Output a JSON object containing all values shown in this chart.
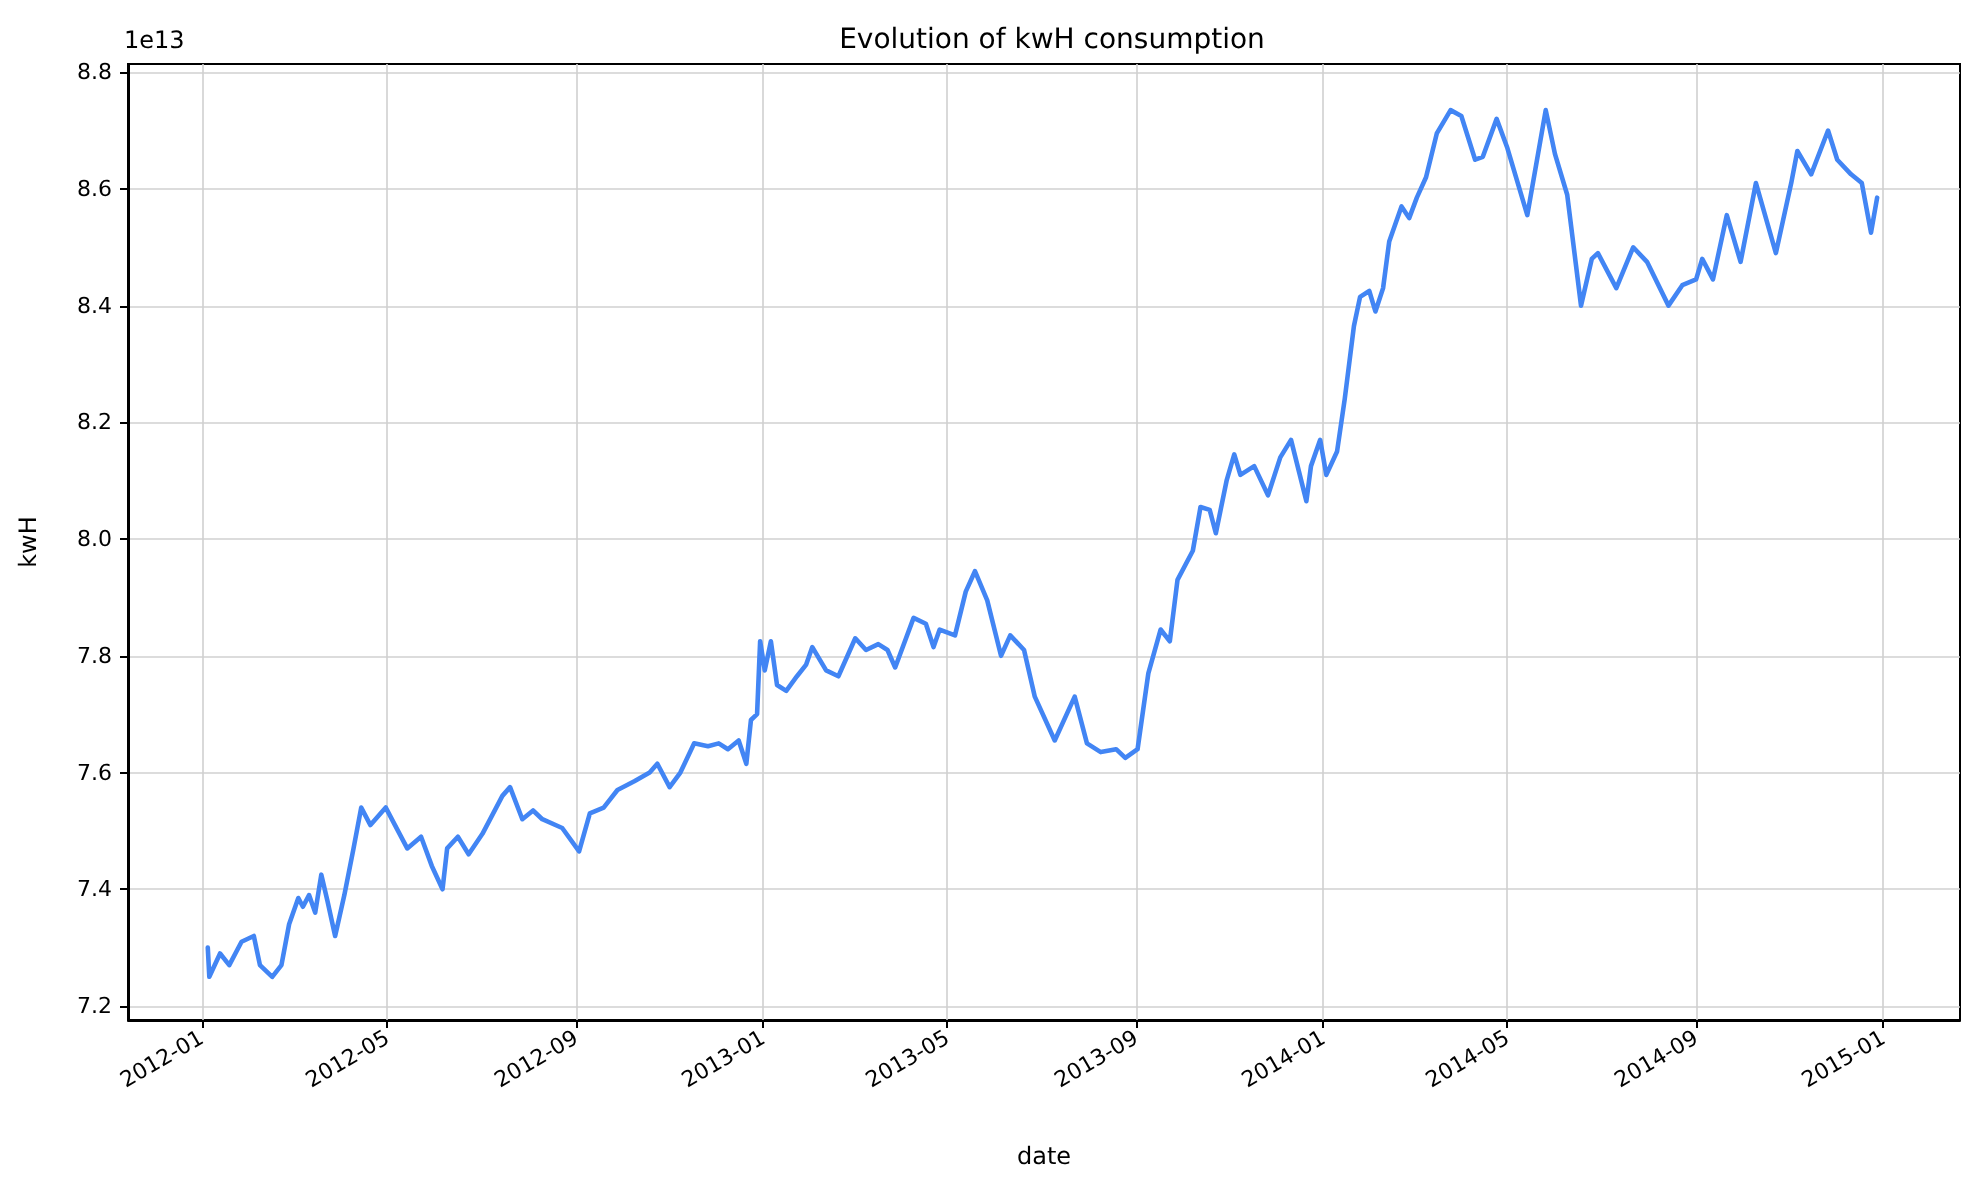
{
  "chart_data": {
    "type": "line",
    "title": "Evolution of kwH consumption",
    "xlabel": "date",
    "ylabel": "kwH",
    "annotations": [
      "1e13"
    ],
    "x": [
      "2012-01-05",
      "2012-01-06",
      "2012-01-13",
      "2012-01-19",
      "2012-01-27",
      "2012-02-04",
      "2012-02-08",
      "2012-02-16",
      "2012-02-22",
      "2012-02-27",
      "2012-03-04",
      "2012-03-07",
      "2012-03-11",
      "2012-03-15",
      "2012-03-19",
      "2012-03-23",
      "2012-03-28",
      "2012-04-03",
      "2012-04-09",
      "2012-04-14",
      "2012-04-20",
      "2012-04-30",
      "2012-05-06",
      "2012-05-14",
      "2012-05-23",
      "2012-05-30",
      "2012-06-06",
      "2012-06-09",
      "2012-06-16",
      "2012-06-23",
      "2012-07-02",
      "2012-07-15",
      "2012-07-20",
      "2012-07-28",
      "2012-08-04",
      "2012-08-10",
      "2012-08-23",
      "2012-09-03",
      "2012-09-10",
      "2012-09-19",
      "2012-09-28",
      "2012-10-09",
      "2012-10-19",
      "2012-10-24",
      "2012-11-01",
      "2012-11-08",
      "2012-11-17",
      "2012-11-26",
      "2012-12-03",
      "2012-12-09",
      "2012-12-16",
      "2012-12-21",
      "2012-12-24",
      "2012-12-28",
      "2012-12-30",
      "2013-01-02",
      "2013-01-06",
      "2013-01-10",
      "2013-01-16",
      "2013-01-23",
      "2013-01-29",
      "2013-02-02",
      "2013-02-11",
      "2013-02-19",
      "2013-03-02",
      "2013-03-09",
      "2013-03-17",
      "2013-03-23",
      "2013-03-28",
      "2013-04-09",
      "2013-04-17",
      "2013-04-22",
      "2013-04-26",
      "2013-05-06",
      "2013-05-13",
      "2013-05-19",
      "2013-05-27",
      "2013-06-05",
      "2013-06-11",
      "2013-06-20",
      "2013-06-27",
      "2013-07-10",
      "2013-07-23",
      "2013-07-31",
      "2013-08-09",
      "2013-08-19",
      "2013-08-25",
      "2013-09-02",
      "2013-09-09",
      "2013-09-17",
      "2013-09-23",
      "2013-09-28",
      "2013-10-08",
      "2013-10-13",
      "2013-10-19",
      "2013-10-23",
      "2013-10-30",
      "2013-11-04",
      "2013-11-08",
      "2013-11-17",
      "2013-11-26",
      "2013-12-04",
      "2013-12-11",
      "2013-12-21",
      "2013-12-24",
      "2013-12-30",
      "2014-01-03",
      "2014-01-10",
      "2014-01-15",
      "2014-01-21",
      "2014-01-25",
      "2014-01-31",
      "2014-02-04",
      "2014-02-09",
      "2014-02-13",
      "2014-02-21",
      "2014-02-26",
      "2014-03-03",
      "2014-03-09",
      "2014-03-16",
      "2014-03-25",
      "2014-04-01",
      "2014-04-10",
      "2014-04-15",
      "2014-04-24",
      "2014-05-01",
      "2014-05-14",
      "2014-05-26",
      "2014-06-01",
      "2014-06-09",
      "2014-06-18",
      "2014-06-25",
      "2014-06-29",
      "2014-07-11",
      "2014-07-22",
      "2014-07-31",
      "2014-08-14",
      "2014-08-23",
      "2014-09-01",
      "2014-09-05",
      "2014-09-12",
      "2014-09-21",
      "2014-09-30",
      "2014-10-10",
      "2014-10-23",
      "2014-11-02",
      "2014-11-06",
      "2014-11-15",
      "2014-11-26",
      "2014-12-02",
      "2014-12-11",
      "2014-12-18",
      "2014-12-24",
      "2014-12-28"
    ],
    "series": [
      {
        "color": "#4285f4",
        "values": [
          7.3,
          7.25,
          7.29,
          7.27,
          7.31,
          7.32,
          7.27,
          7.25,
          7.27,
          7.34,
          7.385,
          7.37,
          7.39,
          7.36,
          7.425,
          7.38,
          7.32,
          7.39,
          7.47,
          7.54,
          7.51,
          7.54,
          7.51,
          7.47,
          7.49,
          7.44,
          7.4,
          7.47,
          7.49,
          7.46,
          7.495,
          7.56,
          7.575,
          7.52,
          7.535,
          7.52,
          7.505,
          7.465,
          7.53,
          7.54,
          7.57,
          7.585,
          7.6,
          7.615,
          7.575,
          7.6,
          7.65,
          7.645,
          7.65,
          7.64,
          7.655,
          7.615,
          7.69,
          7.7,
          7.825,
          7.775,
          7.825,
          7.75,
          7.74,
          7.765,
          7.785,
          7.815,
          7.775,
          7.765,
          7.83,
          7.81,
          7.82,
          7.81,
          7.78,
          7.865,
          7.855,
          7.815,
          7.845,
          7.835,
          7.91,
          7.945,
          7.895,
          7.8,
          7.835,
          7.81,
          7.73,
          7.655,
          7.73,
          7.65,
          7.635,
          7.64,
          7.625,
          7.64,
          7.77,
          7.845,
          7.825,
          7.93,
          7.98,
          8.055,
          8.05,
          8.01,
          8.1,
          8.145,
          8.11,
          8.125,
          8.075,
          8.14,
          8.17,
          8.065,
          8.125,
          8.17,
          8.11,
          8.15,
          8.24,
          8.365,
          8.415,
          8.425,
          8.39,
          8.43,
          8.51,
          8.57,
          8.55,
          8.585,
          8.62,
          8.695,
          8.735,
          8.725,
          8.65,
          8.655,
          8.72,
          8.67,
          8.555,
          8.735,
          8.66,
          8.59,
          8.4,
          8.48,
          8.49,
          8.43,
          8.5,
          8.475,
          8.4,
          8.435,
          8.445,
          8.48,
          8.445,
          8.555,
          8.475,
          8.61,
          8.49,
          8.61,
          8.665,
          8.625,
          8.7,
          8.65,
          8.625,
          8.61,
          8.525,
          8.585
        ]
      }
    ],
    "xlim": [
      "2011-11-14",
      "2015-02-20"
    ],
    "xticks": [
      "2012-01",
      "2012-05",
      "2012-09",
      "2013-01",
      "2013-05",
      "2013-09",
      "2014-01",
      "2014-05",
      "2014-09",
      "2015-01"
    ],
    "ylim": [
      7.176,
      8.814
    ],
    "yticks": [
      {
        "value": 7.2,
        "label": "7.2"
      },
      {
        "value": 7.4,
        "label": "7.4"
      },
      {
        "value": 7.6,
        "label": "7.6"
      },
      {
        "value": 7.8,
        "label": "7.8"
      },
      {
        "value": 8.0,
        "label": "8.0"
      },
      {
        "value": 8.2,
        "label": "8.2"
      },
      {
        "value": 8.4,
        "label": "8.4"
      },
      {
        "value": 8.6,
        "label": "8.6"
      },
      {
        "value": 8.8,
        "label": "8.8"
      }
    ],
    "grid": true,
    "marker": "none",
    "line_style": "solid"
  }
}
